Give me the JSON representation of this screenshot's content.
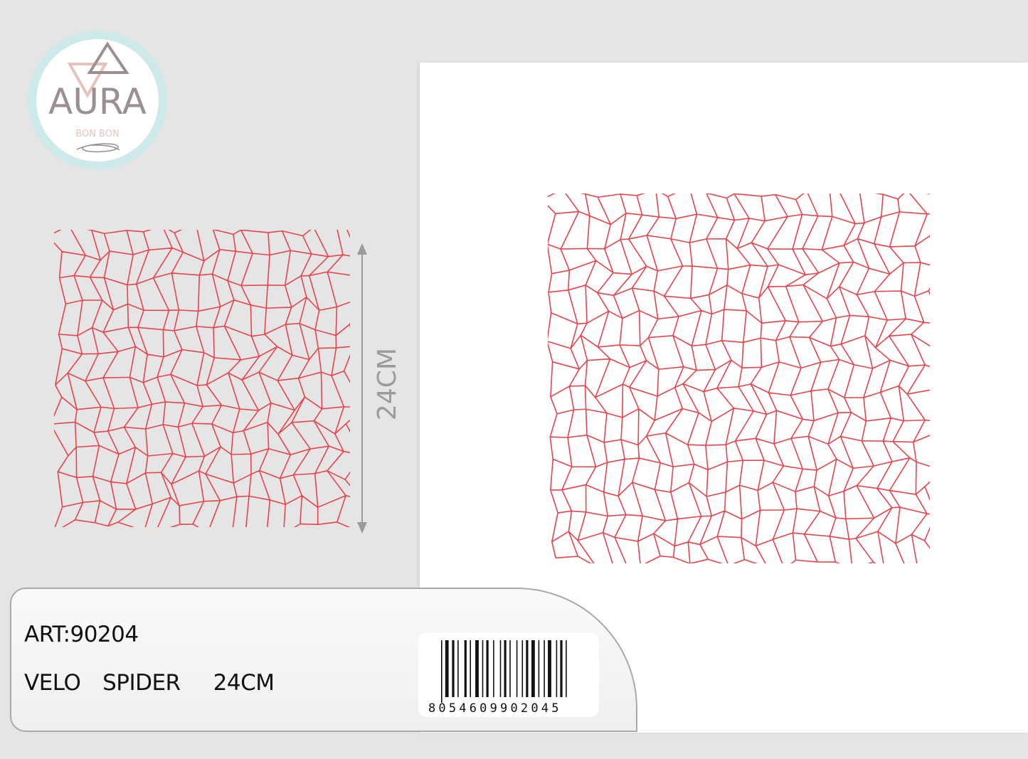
{
  "brand": {
    "name": "AURA",
    "subtitle": "BON BON"
  },
  "product": {
    "article": "ART:90204",
    "description": "VELO  SPIDER   24CM",
    "dimension_label": "24CM",
    "barcode": "8054609902045"
  },
  "colors": {
    "net": "#e8444a",
    "logo_ring": "#cde9ea",
    "logo_text": "#9b8f92",
    "logo_accent": "#e6c2bb"
  }
}
